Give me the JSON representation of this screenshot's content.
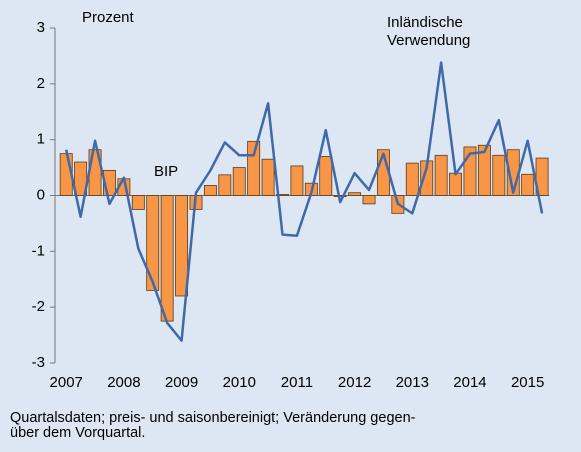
{
  "chart_data": {
    "type": "bar",
    "ylabel": "Prozent",
    "categories": [
      "2007",
      null,
      null,
      null,
      "2008",
      null,
      null,
      null,
      "2009",
      null,
      null,
      null,
      "2010",
      null,
      null,
      null,
      "2011",
      null,
      null,
      null,
      "2012",
      null,
      null,
      null,
      "2013",
      null,
      null,
      null,
      "2014",
      null,
      null,
      null,
      "2015",
      null
    ],
    "series": [
      {
        "name": "BIP",
        "type": "bar",
        "color": "#f79646",
        "values": [
          0.75,
          0.6,
          0.82,
          0.45,
          0.3,
          -0.25,
          -1.7,
          -2.25,
          -1.8,
          -0.25,
          0.18,
          0.37,
          0.5,
          0.97,
          0.65,
          0.02,
          0.53,
          0.22,
          0.7,
          -0.02,
          0.05,
          -0.15,
          0.82,
          -0.32,
          0.58,
          0.62,
          0.72,
          0.4,
          0.87,
          0.9,
          0.72,
          0.82,
          0.38,
          0.67
        ]
      },
      {
        "name": "Inländische Verwendung",
        "type": "line",
        "color": "#4169a8",
        "values": [
          0.82,
          -0.38,
          0.98,
          -0.15,
          0.32,
          -0.95,
          -1.55,
          -2.28,
          -2.6,
          0.05,
          0.45,
          0.95,
          0.72,
          0.72,
          1.65,
          -0.7,
          -0.72,
          0.05,
          1.17,
          -0.12,
          0.4,
          0.1,
          0.75,
          -0.15,
          -0.32,
          0.5,
          2.38,
          0.38,
          0.75,
          0.78,
          1.35,
          0.05,
          0.98,
          -0.32
        ]
      }
    ],
    "ylim": [
      -3,
      3
    ],
    "yticks": [
      -3,
      -2,
      -1,
      0,
      1,
      2,
      3
    ],
    "grid": false,
    "footnote": [
      "Quartalsdaten; preis- und saisonbereinigt; Veränderung gegen-",
      "über dem Vorquartal."
    ]
  }
}
